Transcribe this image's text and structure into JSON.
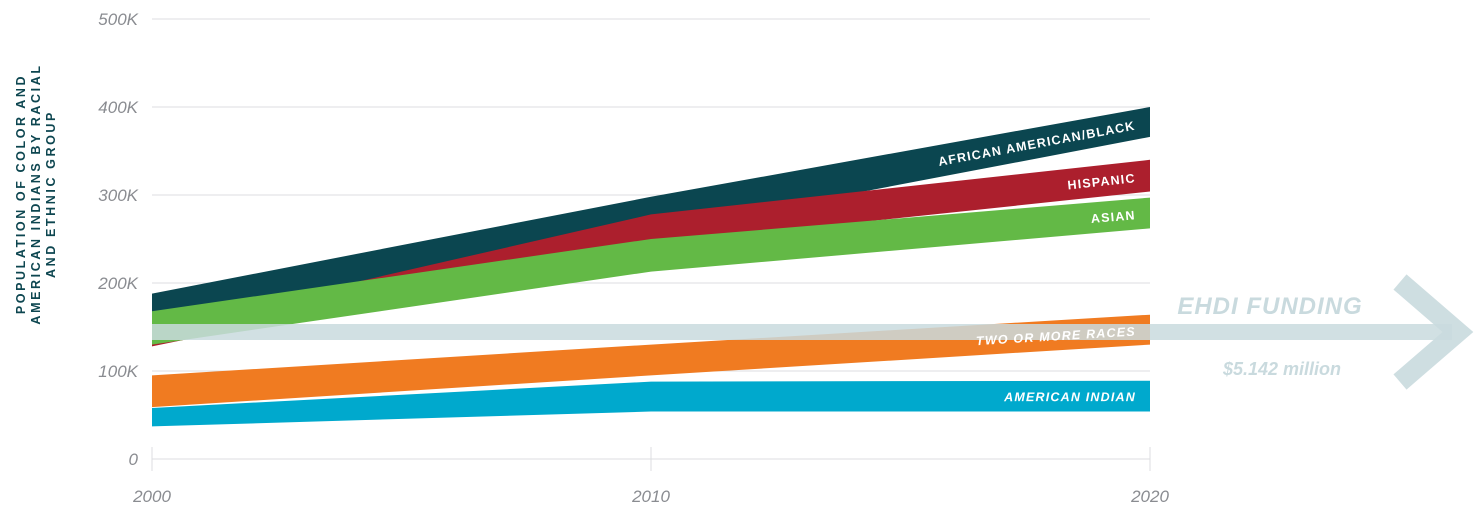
{
  "chart_data": {
    "type": "area",
    "x": [
      2000,
      2010,
      2020
    ],
    "xticks": [
      "2000",
      "2010",
      "2020"
    ],
    "ylim": [
      0,
      500000
    ],
    "yticks": [
      "0",
      "100K",
      "200K",
      "300K",
      "400K",
      "500K"
    ],
    "ylabel": [
      "POPULATION OF COLOR AND",
      "AMERICAN INDIANS BY RACIAL",
      "AND ETHNIC GROUP"
    ],
    "grid": true,
    "series": [
      {
        "name": "AFRICAN AMERICAN/BLACK",
        "color": "#0b4650",
        "upper": [
          188000,
          298000,
          400000
        ],
        "lower": [
          146000,
          258000,
          366000
        ],
        "italic": false
      },
      {
        "name": "HISPANIC",
        "color": "#ac1f2d",
        "upper": [
          148000,
          278000,
          340000
        ],
        "lower": [
          128000,
          244000,
          304000
        ],
        "italic": false
      },
      {
        "name": "ASIAN",
        "color": "#63b946",
        "upper": [
          168000,
          250000,
          297000
        ],
        "lower": [
          130000,
          213000,
          262000
        ],
        "italic": false
      },
      {
        "name": "TWO OR MORE RACES",
        "color": "#f07b21",
        "upper": [
          95000,
          130000,
          164000
        ],
        "lower": [
          59000,
          95000,
          130000
        ],
        "italic": true
      },
      {
        "name": "AMERICAN INDIAN",
        "color": "#00a9cd",
        "upper": [
          58000,
          88000,
          89000
        ],
        "lower": [
          37000,
          54000,
          54000
        ],
        "italic": true
      }
    ],
    "annotation": {
      "title": "EHDI FUNDING",
      "amount": "$5.142 million",
      "color": "#c9dade"
    }
  }
}
